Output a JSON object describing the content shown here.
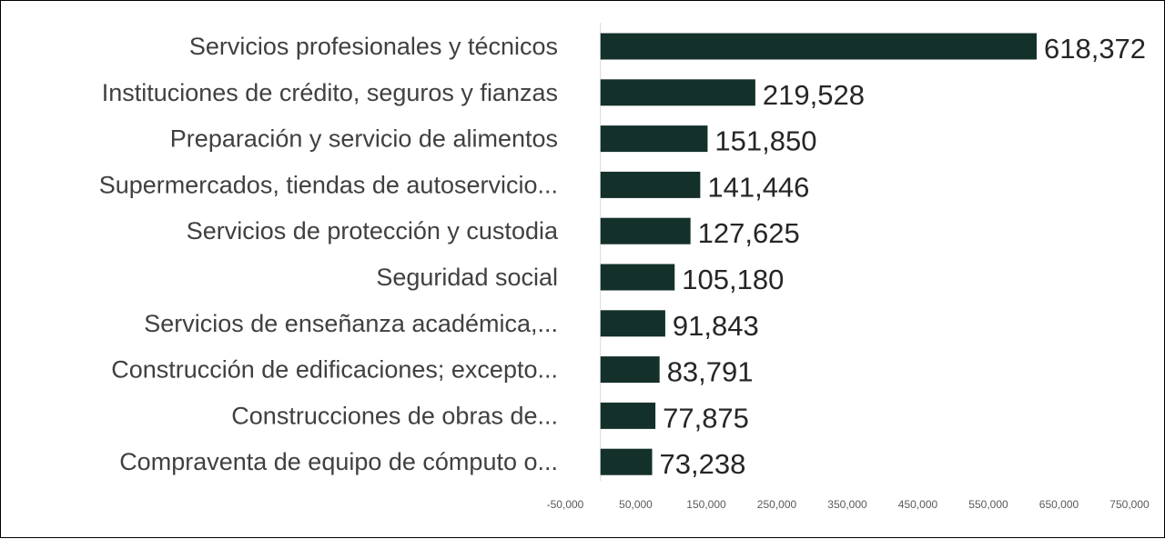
{
  "colors": {
    "bar": "#14302a",
    "axis": "#d9d9d9"
  },
  "chart_data": {
    "type": "bar",
    "orientation": "horizontal",
    "categories": [
      "Servicios profesionales y técnicos",
      "Instituciones de crédito, seguros y fianzas",
      "Preparación y servicio de alimentos",
      "Supermercados, tiendas de autoservicio...",
      "Servicios de protección y custodia",
      "Seguridad social",
      "Servicios de enseñanza académica,...",
      "Construcción de edificaciones; excepto...",
      "Construcciones de obras de...",
      "Compraventa de equipo de cómputo o..."
    ],
    "values": [
      618372,
      219528,
      151850,
      141446,
      127625,
      105180,
      91843,
      83791,
      77875,
      73238
    ],
    "value_labels": [
      "618,372",
      "219,528",
      "151,850",
      "141,446",
      "127,625",
      "105,180",
      "91,843",
      "83,791",
      "77,875",
      "73,238"
    ],
    "xlim": [
      -50000,
      750000
    ],
    "x_ticks": [
      -50000,
      50000,
      150000,
      250000,
      350000,
      450000,
      550000,
      650000,
      750000
    ],
    "x_tick_labels": [
      "-50,000",
      "50,000",
      "150,000",
      "250,000",
      "350,000",
      "450,000",
      "550,000",
      "650,000",
      "750,000"
    ],
    "grid": false,
    "legend": "none"
  }
}
